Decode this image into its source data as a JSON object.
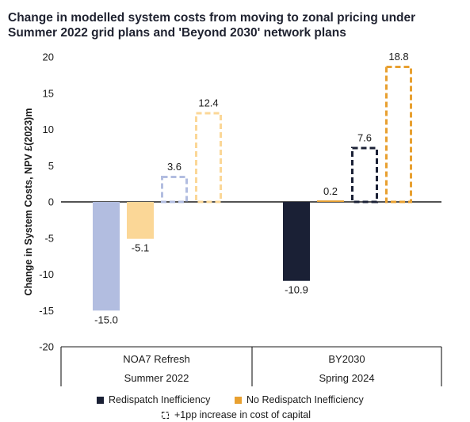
{
  "chart_data": {
    "type": "bar",
    "title": "Change in modelled system costs from moving to zonal pricing under Summer 2022 grid plans and 'Beyond 2030' network plans",
    "title_lines": [
      "Change in modelled system costs from moving to zonal pricing under",
      "Summer 2022 grid plans and 'Beyond 2030' network plans"
    ],
    "ylabel": "Change in System Costs, NPV £(2023)m",
    "xlabel": "",
    "ylim": [
      -20,
      20
    ],
    "yticks": [
      20,
      15,
      10,
      5,
      0,
      -5,
      -10,
      -15,
      -20
    ],
    "grid": false,
    "legend_position": "bottom",
    "groups": [
      {
        "name": "NOA7 Refresh",
        "subname": "Summer 2022"
      },
      {
        "name": "BY2030",
        "subname": "Spring 2024"
      }
    ],
    "series": [
      {
        "name": "Redispatch Inefficiency",
        "group": 0,
        "values": [
          -15.0
        ],
        "style": "solid",
        "color": "#b2bde0",
        "label": "-15.0"
      },
      {
        "name": "No Redispatch Inefficiency",
        "group": 0,
        "values": [
          -5.1
        ],
        "style": "solid",
        "color": "#fbd797",
        "label": "-5.1"
      },
      {
        "name": "Redispatch Inefficiency +1pp",
        "group": 0,
        "values": [
          3.6
        ],
        "style": "dashed",
        "color": "#b2bde0",
        "label": "3.6"
      },
      {
        "name": "No Redispatch Inefficiency +1pp",
        "group": 0,
        "values": [
          12.4
        ],
        "style": "dashed",
        "color": "#fbd797",
        "label": "12.4"
      },
      {
        "name": "Redispatch Inefficiency",
        "group": 1,
        "values": [
          -10.9
        ],
        "style": "solid",
        "color": "#1a2035",
        "label": "-10.9"
      },
      {
        "name": "No Redispatch Inefficiency",
        "group": 1,
        "values": [
          0.2
        ],
        "style": "solid",
        "color": "#e8a030",
        "label": "0.2"
      },
      {
        "name": "Redispatch Inefficiency +1pp",
        "group": 1,
        "values": [
          7.6
        ],
        "style": "dashed",
        "color": "#1a2035",
        "label": "7.6"
      },
      {
        "name": "No Redispatch Inefficiency +1pp",
        "group": 1,
        "values": [
          18.8
        ],
        "style": "dashed",
        "color": "#e8a030",
        "label": "18.8"
      }
    ],
    "legend": [
      {
        "label": "Redispatch Inefficiency",
        "color": "#1a2035"
      },
      {
        "label": "No Redispatch Inefficiency",
        "color": "#e8a030"
      },
      {
        "label": "+1pp increase in cost of capital",
        "icon": "dashed-square-icon"
      }
    ]
  }
}
